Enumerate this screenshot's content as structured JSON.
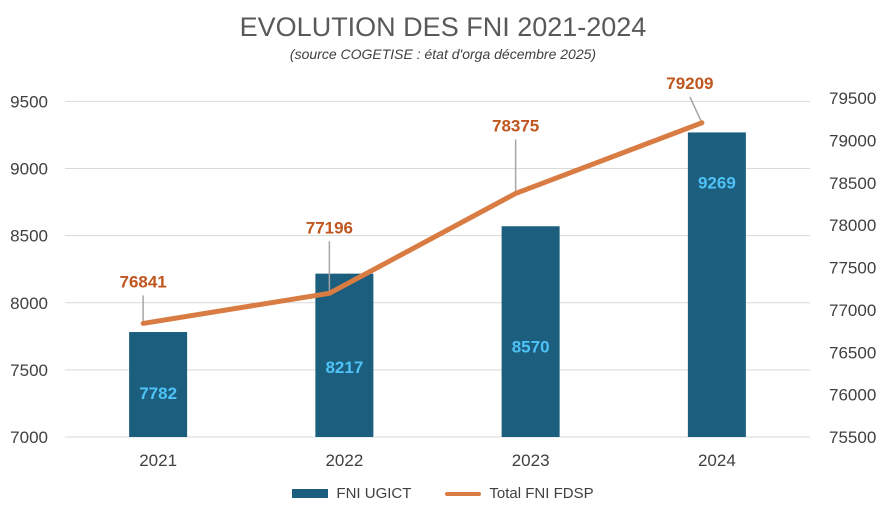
{
  "chart_data": {
    "type": "bar",
    "title": "EVOLUTION DES FNI 2021-2024",
    "subtitle": "(source COGETISE : état d'orga décembre 2025)",
    "categories": [
      "2021",
      "2022",
      "2023",
      "2024"
    ],
    "series": [
      {
        "name": "FNI UGICT",
        "type": "bar",
        "axis": "left",
        "values": [
          7782,
          8217,
          8570,
          9269
        ],
        "color": "#1b5e7e",
        "label_color": "#4fc3f7"
      },
      {
        "name": "Total FNI FDSP",
        "type": "line",
        "axis": "right",
        "values": [
          76841,
          77196,
          78375,
          79209
        ],
        "color": "#d97c43",
        "label_color": "#c0561f"
      }
    ],
    "left_axis": {
      "ylim": [
        7000,
        9600
      ],
      "ticks": [
        7000,
        7500,
        8000,
        8500,
        9000,
        9500
      ]
    },
    "right_axis": {
      "ylim": [
        75500,
        79620
      ],
      "ticks": [
        75500,
        76000,
        76500,
        77000,
        77500,
        78000,
        78500,
        79000,
        79500
      ]
    },
    "grid": true,
    "legend_position": "bottom"
  }
}
